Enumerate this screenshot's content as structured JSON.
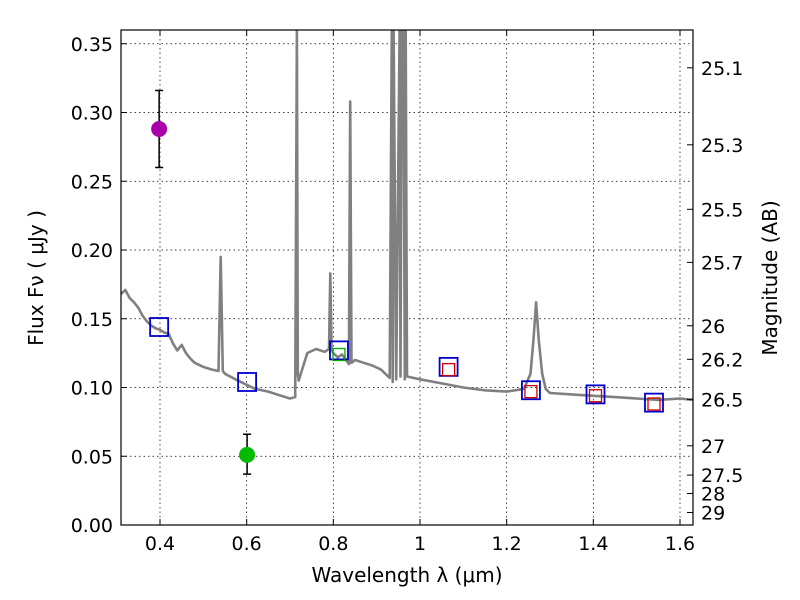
{
  "chart_data": {
    "type": "line",
    "title": "",
    "xlabel": "Wavelength  λ (μm)",
    "ylabel": "Flux  Fν  ( μJy )",
    "ylabel_right": "Magnitude (AB)",
    "xlim": [
      0.31,
      1.63
    ],
    "ylim": [
      0.0,
      0.36
    ],
    "grid": true,
    "x_ticks": [
      0.4,
      0.6,
      0.8,
      1.0,
      1.2,
      1.4,
      1.6
    ],
    "x_tick_labels": [
      "0.4",
      "0.6",
      "0.8",
      "1",
      "1.2",
      "1.4",
      "1.6"
    ],
    "y_ticks": [
      0.0,
      0.05,
      0.1,
      0.15,
      0.2,
      0.25,
      0.3,
      0.35
    ],
    "y_tick_labels": [
      "0.00",
      "0.05",
      "0.10",
      "0.15",
      "0.20",
      "0.25",
      "0.30",
      "0.35"
    ],
    "right_ticks": [
      {
        "label": "25.1",
        "flux": 0.3325
      },
      {
        "label": "25.3",
        "flux": 0.2765
      },
      {
        "label": "25.5",
        "flux": 0.2296
      },
      {
        "label": "25.7",
        "flux": 0.191
      },
      {
        "label": "26",
        "flux": 0.1449
      },
      {
        "label": "26.2",
        "flux": 0.1205
      },
      {
        "label": "26.5",
        "flux": 0.0914
      },
      {
        "label": "27",
        "flux": 0.0576
      },
      {
        "label": "27.5",
        "flux": 0.0363
      },
      {
        "label": "28",
        "flux": 0.0229
      },
      {
        "label": "29",
        "flux": 0.0091
      }
    ],
    "series": [
      {
        "name": "model spectrum",
        "type": "line",
        "color": "#808080",
        "x": [
          0.31,
          0.32,
          0.33,
          0.34,
          0.35,
          0.36,
          0.37,
          0.38,
          0.39,
          0.4,
          0.41,
          0.42,
          0.43,
          0.44,
          0.45,
          0.46,
          0.47,
          0.48,
          0.5,
          0.52,
          0.535,
          0.54,
          0.545,
          0.55,
          0.58,
          0.6,
          0.62,
          0.65,
          0.68,
          0.7,
          0.712,
          0.716,
          0.718,
          0.72,
          0.725,
          0.74,
          0.76,
          0.78,
          0.79,
          0.793,
          0.796,
          0.8,
          0.81,
          0.82,
          0.83,
          0.836,
          0.839,
          0.842,
          0.85,
          0.87,
          0.89,
          0.91,
          0.93,
          0.935,
          0.937,
          0.939,
          0.945,
          0.953,
          0.955,
          0.958,
          0.962,
          0.965,
          0.967,
          0.97,
          1.0,
          1.05,
          1.1,
          1.15,
          1.2,
          1.24,
          1.255,
          1.262,
          1.268,
          1.274,
          1.282,
          1.29,
          1.3,
          1.35,
          1.4,
          1.45,
          1.5,
          1.55,
          1.6,
          1.63
        ],
        "y": [
          0.168,
          0.171,
          0.165,
          0.162,
          0.158,
          0.152,
          0.148,
          0.145,
          0.143,
          0.142,
          0.14,
          0.139,
          0.132,
          0.127,
          0.131,
          0.125,
          0.121,
          0.118,
          0.115,
          0.113,
          0.112,
          0.195,
          0.112,
          0.11,
          0.105,
          0.102,
          0.099,
          0.097,
          0.094,
          0.092,
          0.093,
          0.36,
          0.11,
          0.105,
          0.11,
          0.125,
          0.128,
          0.126,
          0.128,
          0.183,
          0.127,
          0.125,
          0.122,
          0.124,
          0.12,
          0.117,
          0.308,
          0.118,
          0.12,
          0.118,
          0.116,
          0.113,
          0.107,
          0.36,
          0.104,
          0.36,
          0.106,
          0.36,
          0.108,
          0.36,
          0.36,
          0.106,
          0.36,
          0.108,
          0.106,
          0.103,
          0.1,
          0.098,
          0.097,
          0.099,
          0.11,
          0.135,
          0.162,
          0.135,
          0.11,
          0.099,
          0.096,
          0.095,
          0.094,
          0.093,
          0.092,
          0.091,
          0.092,
          0.091
        ]
      },
      {
        "name": "model photometry",
        "type": "scatter",
        "marker": "square",
        "color": "#0000cc",
        "x": [
          0.398,
          0.601,
          0.813,
          1.066,
          1.256,
          1.405,
          1.54
        ],
        "y": [
          0.144,
          0.104,
          0.127,
          0.115,
          0.098,
          0.095,
          0.089
        ]
      },
      {
        "name": "observed photometry (small squares)",
        "type": "scatter",
        "marker": "square",
        "colors": [
          "#00aa00",
          "#cc0000",
          "#cc0000",
          "#cc0000",
          "#cc0000"
        ],
        "x": [
          0.813,
          1.066,
          1.256,
          1.405,
          1.54
        ],
        "y": [
          0.124,
          0.113,
          0.097,
          0.094,
          0.088
        ]
      },
      {
        "name": "observed photometry (circles)",
        "type": "scatter",
        "marker": "circle",
        "colors": [
          "#aa00aa",
          "#00bb00"
        ],
        "x": [
          0.398,
          0.601
        ],
        "y": [
          0.288,
          0.051
        ],
        "yerr_low": [
          0.26,
          0.037
        ],
        "yerr_high": [
          0.316,
          0.066
        ]
      }
    ]
  }
}
